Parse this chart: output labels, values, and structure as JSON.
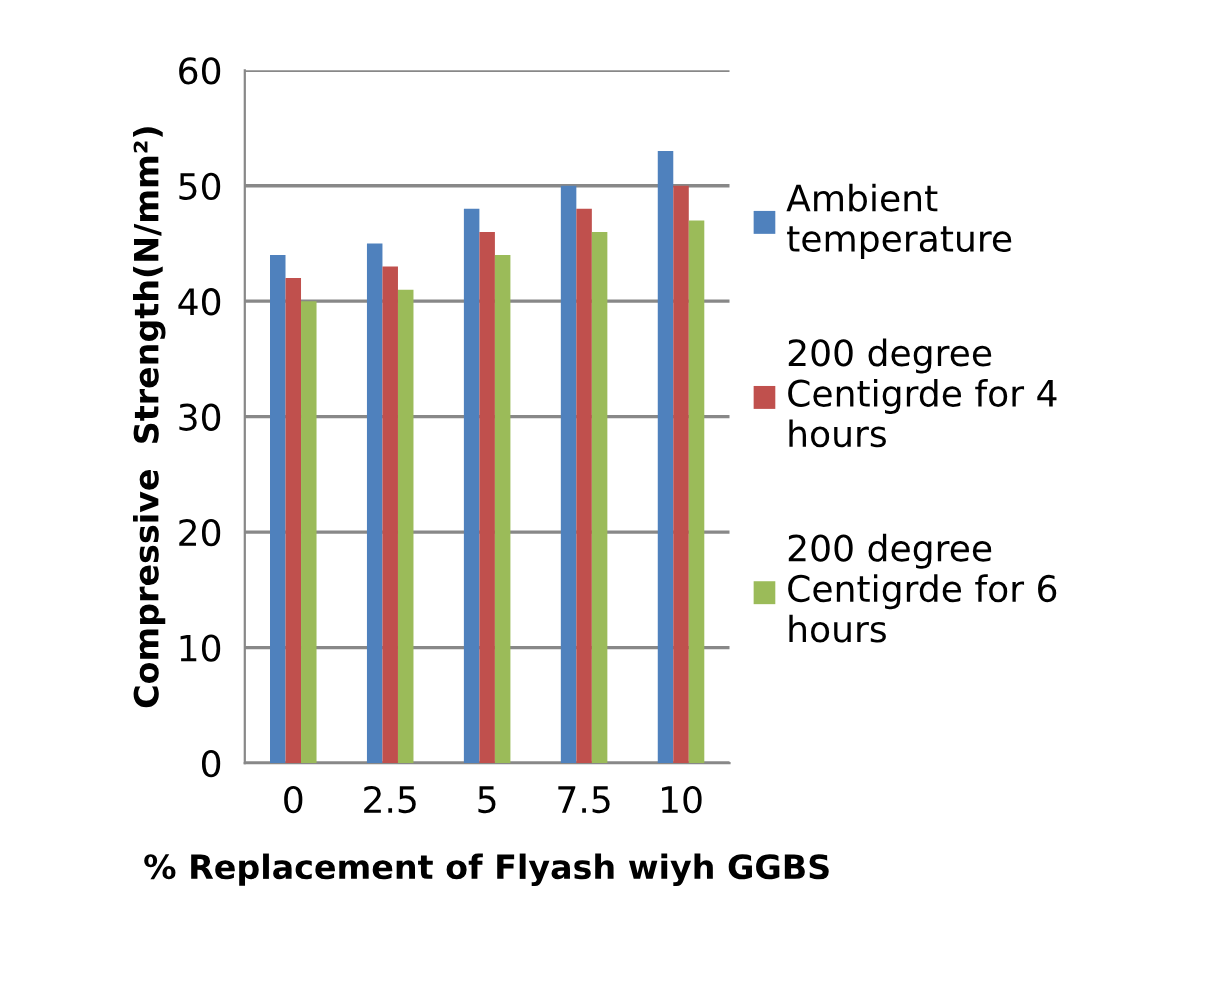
{
  "chart_data": {
    "type": "bar",
    "xlabel": "% Replacement of Flyash wiyh GGBS",
    "ylabel": "Compressive  Strength(N/mm²)",
    "categories": [
      "0",
      "2.5",
      "5",
      "7.5",
      "10"
    ],
    "series": [
      {
        "name": "Ambient\ntemperature",
        "color": "#4f81bd",
        "values": [
          44,
          45,
          48,
          50,
          53
        ]
      },
      {
        "name": "200 degree\nCentigrde for 4\nhours",
        "color": "#c0504d",
        "values": [
          42,
          43,
          46,
          48,
          50
        ]
      },
      {
        "name": "200 degree\nCentigrde for 6\nhours",
        "color": "#9bbb59",
        "values": [
          40,
          41,
          44,
          46,
          47
        ]
      }
    ],
    "ylim": [
      0,
      60
    ],
    "yticks": [
      0,
      10,
      20,
      30,
      40,
      50,
      60
    ],
    "grid": "y",
    "legend": "right"
  }
}
